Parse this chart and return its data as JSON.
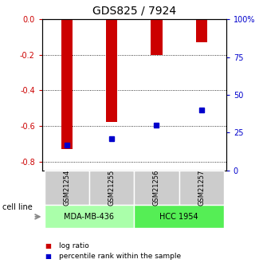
{
  "title": "GDS825 / 7924",
  "samples": [
    "GSM21254",
    "GSM21255",
    "GSM21256",
    "GSM21257"
  ],
  "log_ratios": [
    -0.73,
    -0.575,
    -0.2,
    -0.13
  ],
  "percentile_ranks_pct": [
    17,
    21,
    30,
    40
  ],
  "cell_lines": [
    {
      "label": "MDA-MB-436",
      "samples": [
        0,
        1
      ],
      "color": "#aaffaa"
    },
    {
      "label": "HCC 1954",
      "samples": [
        2,
        3
      ],
      "color": "#55ee55"
    }
  ],
  "ylim_left": [
    -0.85,
    0.0
  ],
  "ylim_right": [
    0,
    100
  ],
  "yticks_left": [
    0.0,
    -0.2,
    -0.4,
    -0.6,
    -0.8
  ],
  "yticks_right": [
    0,
    25,
    50,
    75,
    100
  ],
  "bar_color": "#cc0000",
  "dot_color": "#0000cc",
  "title_fontsize": 10,
  "tick_fontsize": 7,
  "bar_width": 0.25,
  "left_tick_color": "#cc0000",
  "right_tick_color": "#0000cc",
  "gray_box_color": "#cccccc",
  "cell_line_label_size": 7,
  "sample_label_size": 6
}
